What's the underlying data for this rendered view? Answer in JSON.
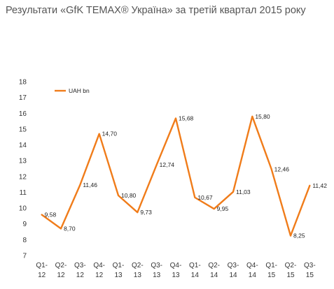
{
  "title": "Результати «GfK TEMAX® Україна» за третій квартал 2015 року",
  "chart_data": {
    "type": "line",
    "title": "Результати «GfK TEMAX® Україна» за третій квартал 2015 року",
    "xlabel": "",
    "ylabel": "",
    "ylim": [
      7,
      18
    ],
    "yticks": [
      "7",
      "8",
      "9",
      "10",
      "11",
      "12",
      "13",
      "14",
      "15",
      "16",
      "17",
      "18"
    ],
    "grid": false,
    "legend": "top-left",
    "categories": [
      [
        "Q1-",
        "12"
      ],
      [
        "Q2-",
        "12"
      ],
      [
        "Q3-",
        "12"
      ],
      [
        "Q4-",
        "12"
      ],
      [
        "Q1-",
        "13"
      ],
      [
        "Q2-",
        "13"
      ],
      [
        "Q3-",
        "13"
      ],
      [
        "Q4-",
        "13"
      ],
      [
        "Q1-",
        "14"
      ],
      [
        "Q2-",
        "14"
      ],
      [
        "Q3-",
        "14"
      ],
      [
        "Q4-",
        "14"
      ],
      [
        "Q1-",
        "15"
      ],
      [
        "Q2-",
        "15"
      ],
      [
        "Q3-",
        "15"
      ]
    ],
    "series": [
      {
        "name": "UAH bn",
        "color": "#f07c1a",
        "values": [
          9.58,
          8.7,
          11.46,
          14.7,
          10.8,
          9.73,
          12.74,
          15.68,
          10.67,
          9.95,
          11.03,
          15.8,
          12.46,
          8.25,
          11.42
        ],
        "labels": [
          "9,58",
          "8,70",
          "11,46",
          "14,70",
          "10,80",
          "9,73",
          "12,74",
          "15,68",
          "10,67",
          "9,95",
          "11,03",
          "15,80",
          "12,46",
          "8,25",
          "11,42"
        ]
      }
    ]
  }
}
